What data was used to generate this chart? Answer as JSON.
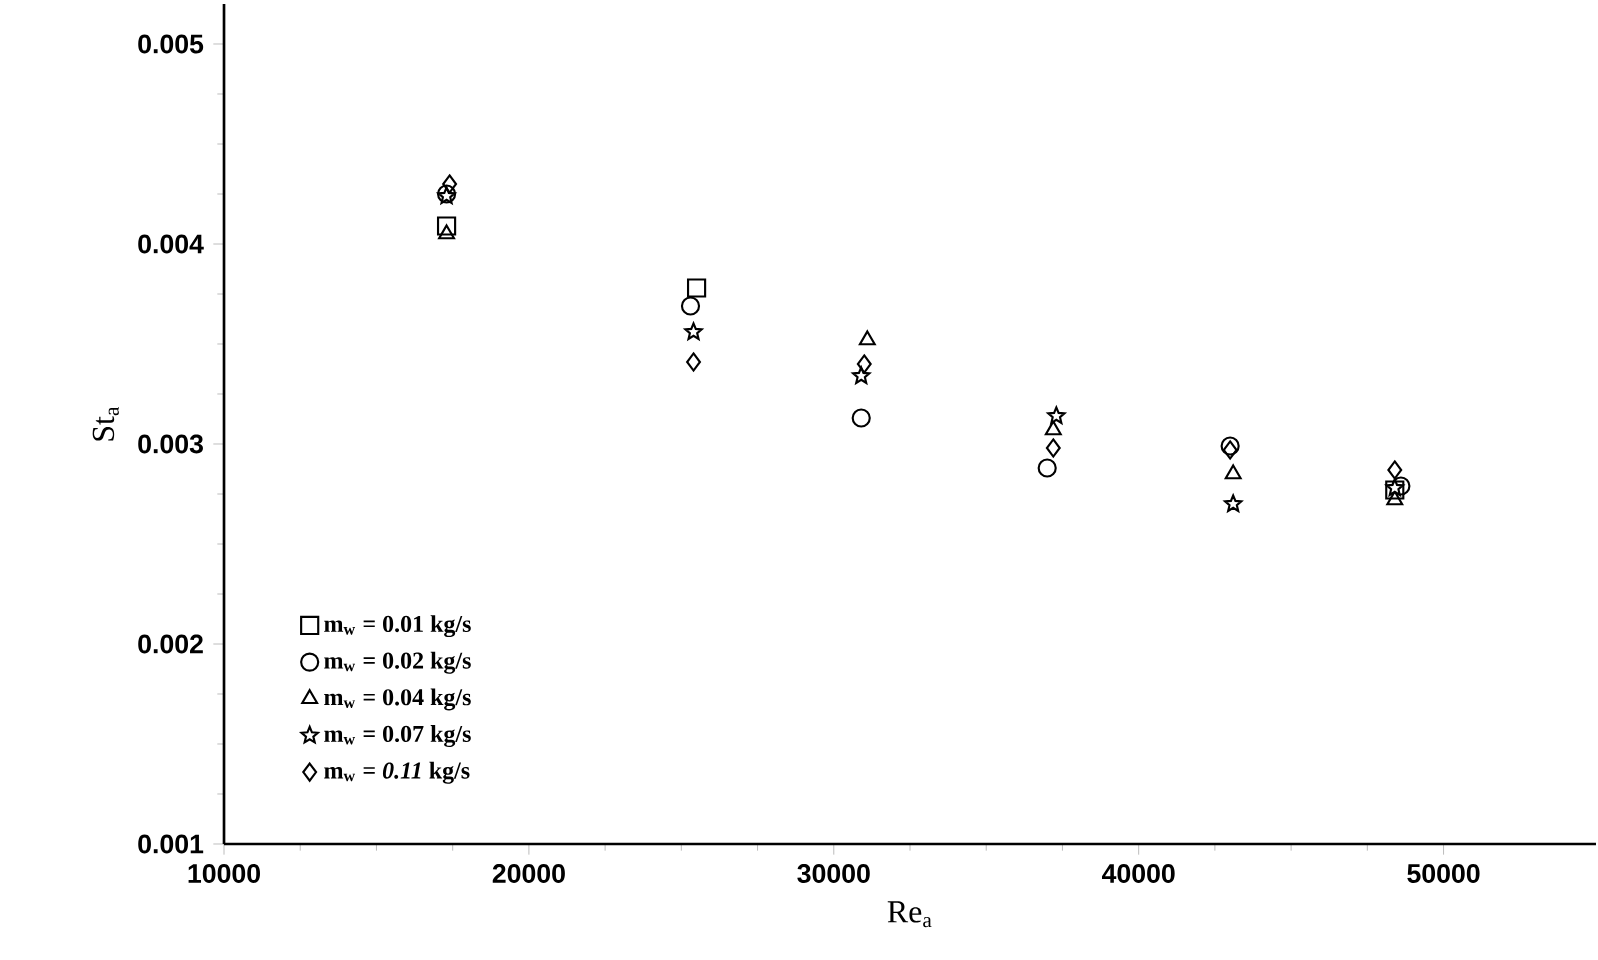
{
  "chart_data": {
    "type": "scatter",
    "xlabel": "Re$_{a}$",
    "ylabel": "St$_{a}$",
    "xlim": [
      10000,
      55000
    ],
    "ylim": [
      0.001,
      0.0052
    ],
    "xticks": [
      10000,
      20000,
      30000,
      40000,
      50000
    ],
    "yticks": [
      0.001,
      0.002,
      0.003,
      0.004,
      0.005
    ],
    "legend": "bottom left",
    "grid": false,
    "series": [
      {
        "name": "m$_{w}$ = 0.01 kg/s",
        "color": "#000000",
        "marker": "square",
        "x": [
          17300,
          25500,
          31000,
          37100,
          43000,
          48400
        ],
        "values": [
          0.00409,
          0.00378,
          null,
          null,
          null,
          0.00277
        ]
      },
      {
        "name": "m$_{w}$ = 0.02 kg/s",
        "color": "#000000",
        "marker": "circle",
        "x": [
          17300,
          25300,
          30900,
          37000,
          43000,
          48600
        ],
        "values": [
          0.00425,
          0.00369,
          0.00313,
          0.00288,
          0.00299,
          0.00279
        ]
      },
      {
        "name": "m$_{w}$ = 0.04 kg/s",
        "color": "#000000",
        "marker": "triangle",
        "x": [
          17300,
          25400,
          31100,
          37200,
          43100,
          48400
        ],
        "values": [
          0.00405,
          null,
          0.00352,
          0.00307,
          0.00285,
          0.00272
        ]
      },
      {
        "name": "m$_{w}$ = 0.07 kg/s",
        "color": "#000000",
        "marker": "star",
        "x": [
          17300,
          25400,
          30900,
          37300,
          43100,
          48400
        ],
        "values": [
          0.00424,
          0.00356,
          0.00334,
          0.00314,
          0.0027,
          0.00278
        ]
      },
      {
        "name": "m$_{w}$ = *0.11* kg/s",
        "color": "#000000",
        "marker": "diamond",
        "x": [
          17400,
          25400,
          31000,
          37200,
          43000,
          48400
        ],
        "values": [
          0.0043,
          0.00341,
          0.0034,
          0.00298,
          0.00297,
          0.00287
        ]
      }
    ]
  }
}
